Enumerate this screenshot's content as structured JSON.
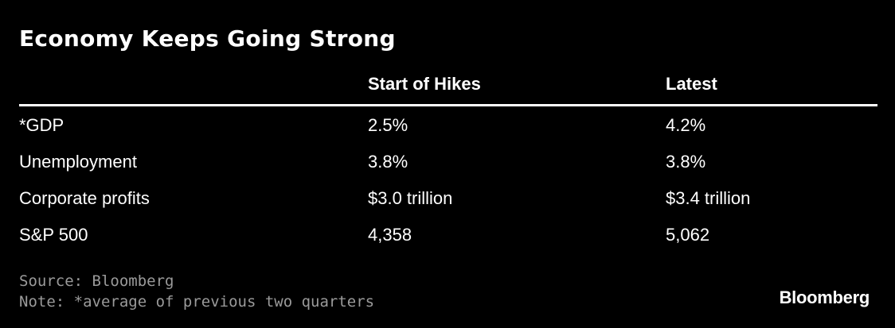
{
  "chart_data": {
    "type": "table",
    "title": "Economy Keeps Going Strong",
    "columns": [
      "",
      "Start of Hikes",
      "Latest"
    ],
    "rows": [
      [
        "*GDP",
        "2.5%",
        "4.2%"
      ],
      [
        "Unemployment",
        "3.8%",
        "3.8%"
      ],
      [
        "Corporate profits",
        "$3.0 trillion",
        "$3.4 trillion"
      ],
      [
        "S&P 500",
        "4,358",
        "5,062"
      ]
    ],
    "source": "Source: Bloomberg",
    "note": "Note: *average of previous two quarters"
  },
  "brand": "Bloomberg",
  "colors": {
    "background": "#000000",
    "text": "#ffffff",
    "footnote": "#9a9a9a"
  }
}
